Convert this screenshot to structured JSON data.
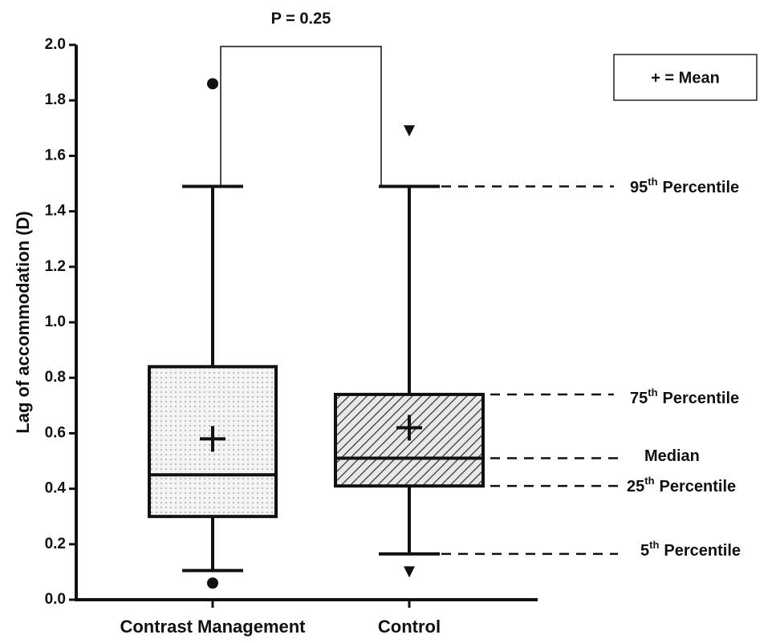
{
  "chart_data": {
    "type": "box",
    "ylabel": "Lag of accommodation (D)",
    "categories": [
      "Contrast Management",
      "Control"
    ],
    "ylim": [
      0,
      2
    ],
    "yticks": [
      {
        "value": 0,
        "label": "0.0"
      },
      0.2,
      0.4,
      0.6,
      0.8,
      {
        "value": 1,
        "label": "1.0"
      },
      1.2,
      1.4,
      1.6,
      1.8,
      {
        "value": 2,
        "label": "2.0"
      }
    ],
    "series": [
      {
        "name": "Contrast Management",
        "pattern": "dots",
        "whislo": 0.105,
        "q1": 0.3,
        "median": 0.45,
        "q3": 0.84,
        "whishi": 1.49,
        "mean": 0.58,
        "outliers": [
          1.86,
          0.06
        ],
        "outlier_marker": "circle"
      },
      {
        "name": "Control",
        "pattern": "hatch",
        "whislo": 0.165,
        "q1": 0.41,
        "median": 0.51,
        "q3": 0.74,
        "whishi": 1.49,
        "mean": 0.62,
        "outliers": [
          1.69,
          0.1
        ],
        "outlier_marker": "triangle"
      }
    ],
    "p_value_label": "P = 0.25",
    "legend_text": "+ = Mean",
    "key_labels": [
      {
        "num": "95",
        "sup": "th",
        "text": "Percentile"
      },
      {
        "num": "75",
        "sup": "th",
        "text": "Percentile"
      },
      {
        "num": "",
        "sup": "",
        "text": "Median"
      },
      {
        "num": "25",
        "sup": "th",
        "text": "Percentile"
      },
      {
        "num": "5",
        "sup": "th",
        "text": "Percentile"
      }
    ]
  }
}
